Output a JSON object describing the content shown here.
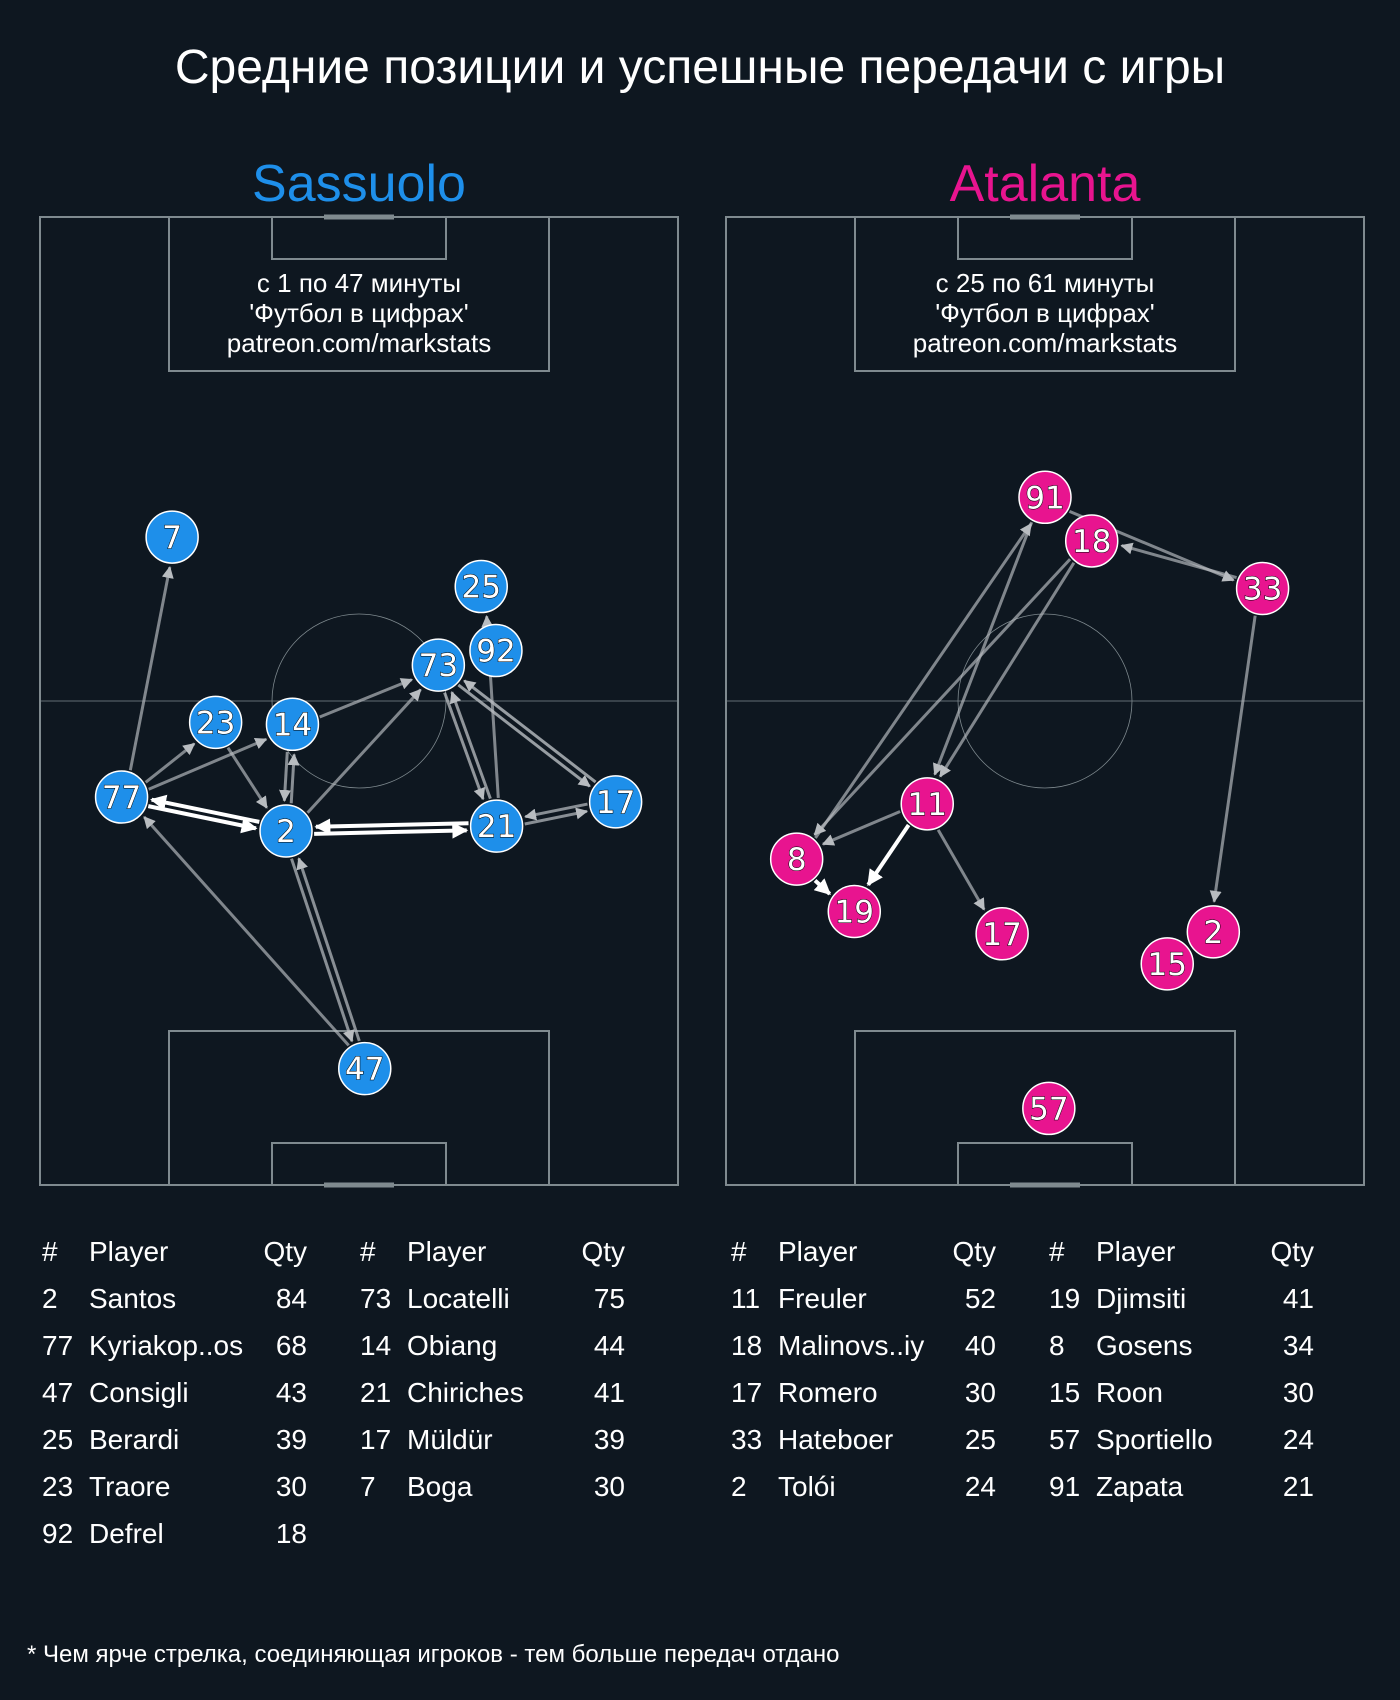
{
  "title": "Средние позиции и успешные передачи с игры",
  "footnote": "* Чем ярче стрелка, соединяющая игроков - тем больше передач отдано",
  "colors": {
    "background": "#0e1720",
    "sassuolo": "#1e8fea",
    "atalanta": "#e8148f",
    "pitch_lines": "#7f8a8f",
    "arrow": "#b8bcc0",
    "arrow_strong": "#ffffff"
  },
  "table_headers": {
    "num": "#",
    "player": "Player",
    "qty": "Qty"
  },
  "chart_data": [
    {
      "type": "pass-network",
      "team": "Sassuolo",
      "color": "#1e8fea",
      "info_lines": [
        "с 1 по 47 минуты",
        "'Футбол в цифрах'",
        "patreon.com/markstats"
      ],
      "players": [
        {
          "num": "7",
          "x": 20.8,
          "y": 66.9
        },
        {
          "num": "25",
          "x": 69.1,
          "y": 61.8
        },
        {
          "num": "92",
          "x": 71.4,
          "y": 55.2
        },
        {
          "num": "73",
          "x": 62.4,
          "y": 53.7
        },
        {
          "num": "23",
          "x": 27.6,
          "y": 47.8
        },
        {
          "num": "14",
          "x": 39.6,
          "y": 47.6
        },
        {
          "num": "77",
          "x": 12.9,
          "y": 40.1
        },
        {
          "num": "2",
          "x": 38.6,
          "y": 36.6
        },
        {
          "num": "21",
          "x": 71.5,
          "y": 37.1
        },
        {
          "num": "17",
          "x": 90.1,
          "y": 39.6
        },
        {
          "num": "47",
          "x": 50.9,
          "y": 12.1
        }
      ],
      "passes": [
        {
          "from": "77",
          "to": "7",
          "strength": 0.5
        },
        {
          "from": "77",
          "to": "23",
          "strength": 0.5
        },
        {
          "from": "77",
          "to": "14",
          "strength": 0.5
        },
        {
          "from": "23",
          "to": "2",
          "strength": 0.5
        },
        {
          "from": "14",
          "to": "73",
          "strength": 0.5
        },
        {
          "from": "2",
          "to": "14",
          "strength": 0.6
        },
        {
          "from": "14",
          "to": "2",
          "strength": 0.6
        },
        {
          "from": "2",
          "to": "73",
          "strength": 0.5
        },
        {
          "from": "2",
          "to": "77",
          "strength": 1.0
        },
        {
          "from": "77",
          "to": "2",
          "strength": 1.0
        },
        {
          "from": "2",
          "to": "21",
          "strength": 1.0
        },
        {
          "from": "21",
          "to": "2",
          "strength": 1.0
        },
        {
          "from": "73",
          "to": "21",
          "strength": 0.7
        },
        {
          "from": "21",
          "to": "73",
          "strength": 0.7
        },
        {
          "from": "73",
          "to": "17",
          "strength": 0.8
        },
        {
          "from": "17",
          "to": "73",
          "strength": 0.8
        },
        {
          "from": "21",
          "to": "25",
          "strength": 0.5
        },
        {
          "from": "21",
          "to": "17",
          "strength": 0.6
        },
        {
          "from": "17",
          "to": "21",
          "strength": 0.6
        },
        {
          "from": "47",
          "to": "2",
          "strength": 0.6
        },
        {
          "from": "2",
          "to": "47",
          "strength": 0.6
        },
        {
          "from": "47",
          "to": "77",
          "strength": 0.5
        }
      ],
      "table": [
        [
          {
            "num": "2",
            "name": "Santos",
            "qty": "84"
          },
          {
            "num": "77",
            "name": "Kyriakop..os",
            "qty": "68"
          },
          {
            "num": "47",
            "name": "Consigli",
            "qty": "43"
          },
          {
            "num": "25",
            "name": "Berardi",
            "qty": "39"
          },
          {
            "num": "23",
            "name": "Traore",
            "qty": "30"
          },
          {
            "num": "92",
            "name": "Defrel",
            "qty": "18"
          }
        ],
        [
          {
            "num": "73",
            "name": "Locatelli",
            "qty": "75"
          },
          {
            "num": "14",
            "name": "Obiang",
            "qty": "44"
          },
          {
            "num": "21",
            "name": "Chiriches",
            "qty": "41"
          },
          {
            "num": "17",
            "name": "Müldür",
            "qty": "39"
          },
          {
            "num": "7",
            "name": "Boga",
            "qty": "30"
          }
        ]
      ]
    },
    {
      "type": "pass-network",
      "team": "Atalanta",
      "color": "#e8148f",
      "info_lines": [
        "с 25 по 61 минуты",
        "'Футбол в цифрах'",
        "patreon.com/markstats"
      ],
      "players": [
        {
          "num": "91",
          "x": 50.0,
          "y": 71.0
        },
        {
          "num": "18",
          "x": 57.3,
          "y": 66.5
        },
        {
          "num": "33",
          "x": 84.0,
          "y": 61.6
        },
        {
          "num": "11",
          "x": 31.6,
          "y": 39.4
        },
        {
          "num": "8",
          "x": 11.2,
          "y": 33.7
        },
        {
          "num": "19",
          "x": 20.2,
          "y": 28.3
        },
        {
          "num": "17",
          "x": 43.3,
          "y": 26.0
        },
        {
          "num": "2",
          "x": 76.3,
          "y": 26.2
        },
        {
          "num": "15",
          "x": 69.1,
          "y": 22.9
        },
        {
          "num": "57",
          "x": 50.6,
          "y": 8.0
        }
      ],
      "passes": [
        {
          "from": "8",
          "to": "91",
          "strength": 0.5
        },
        {
          "from": "91",
          "to": "11",
          "strength": 0.5
        },
        {
          "from": "18",
          "to": "8",
          "strength": 0.5
        },
        {
          "from": "18",
          "to": "11",
          "strength": 0.5
        },
        {
          "from": "91",
          "to": "33",
          "strength": 0.5
        },
        {
          "from": "33",
          "to": "18",
          "strength": 0.5
        },
        {
          "from": "33",
          "to": "2",
          "strength": 0.5
        },
        {
          "from": "11",
          "to": "8",
          "strength": 0.5
        },
        {
          "from": "11",
          "to": "19",
          "strength": 1.0
        },
        {
          "from": "11",
          "to": "17",
          "strength": 0.5
        },
        {
          "from": "8",
          "to": "19",
          "strength": 0.9
        }
      ],
      "table": [
        [
          {
            "num": "11",
            "name": "Freuler",
            "qty": "52"
          },
          {
            "num": "18",
            "name": "Malinovs..iy",
            "qty": "40"
          },
          {
            "num": "17",
            "name": "Romero",
            "qty": "30"
          },
          {
            "num": "33",
            "name": "Hateboer",
            "qty": "25"
          },
          {
            "num": "2",
            "name": "Tolói",
            "qty": "24"
          }
        ],
        [
          {
            "num": "19",
            "name": "Djimsiti",
            "qty": "41"
          },
          {
            "num": "8",
            "name": "Gosens",
            "qty": "34"
          },
          {
            "num": "15",
            "name": "Roon",
            "qty": "30"
          },
          {
            "num": "57",
            "name": "Sportiello",
            "qty": "24"
          },
          {
            "num": "91",
            "name": "Zapata",
            "qty": "21"
          }
        ]
      ]
    }
  ]
}
